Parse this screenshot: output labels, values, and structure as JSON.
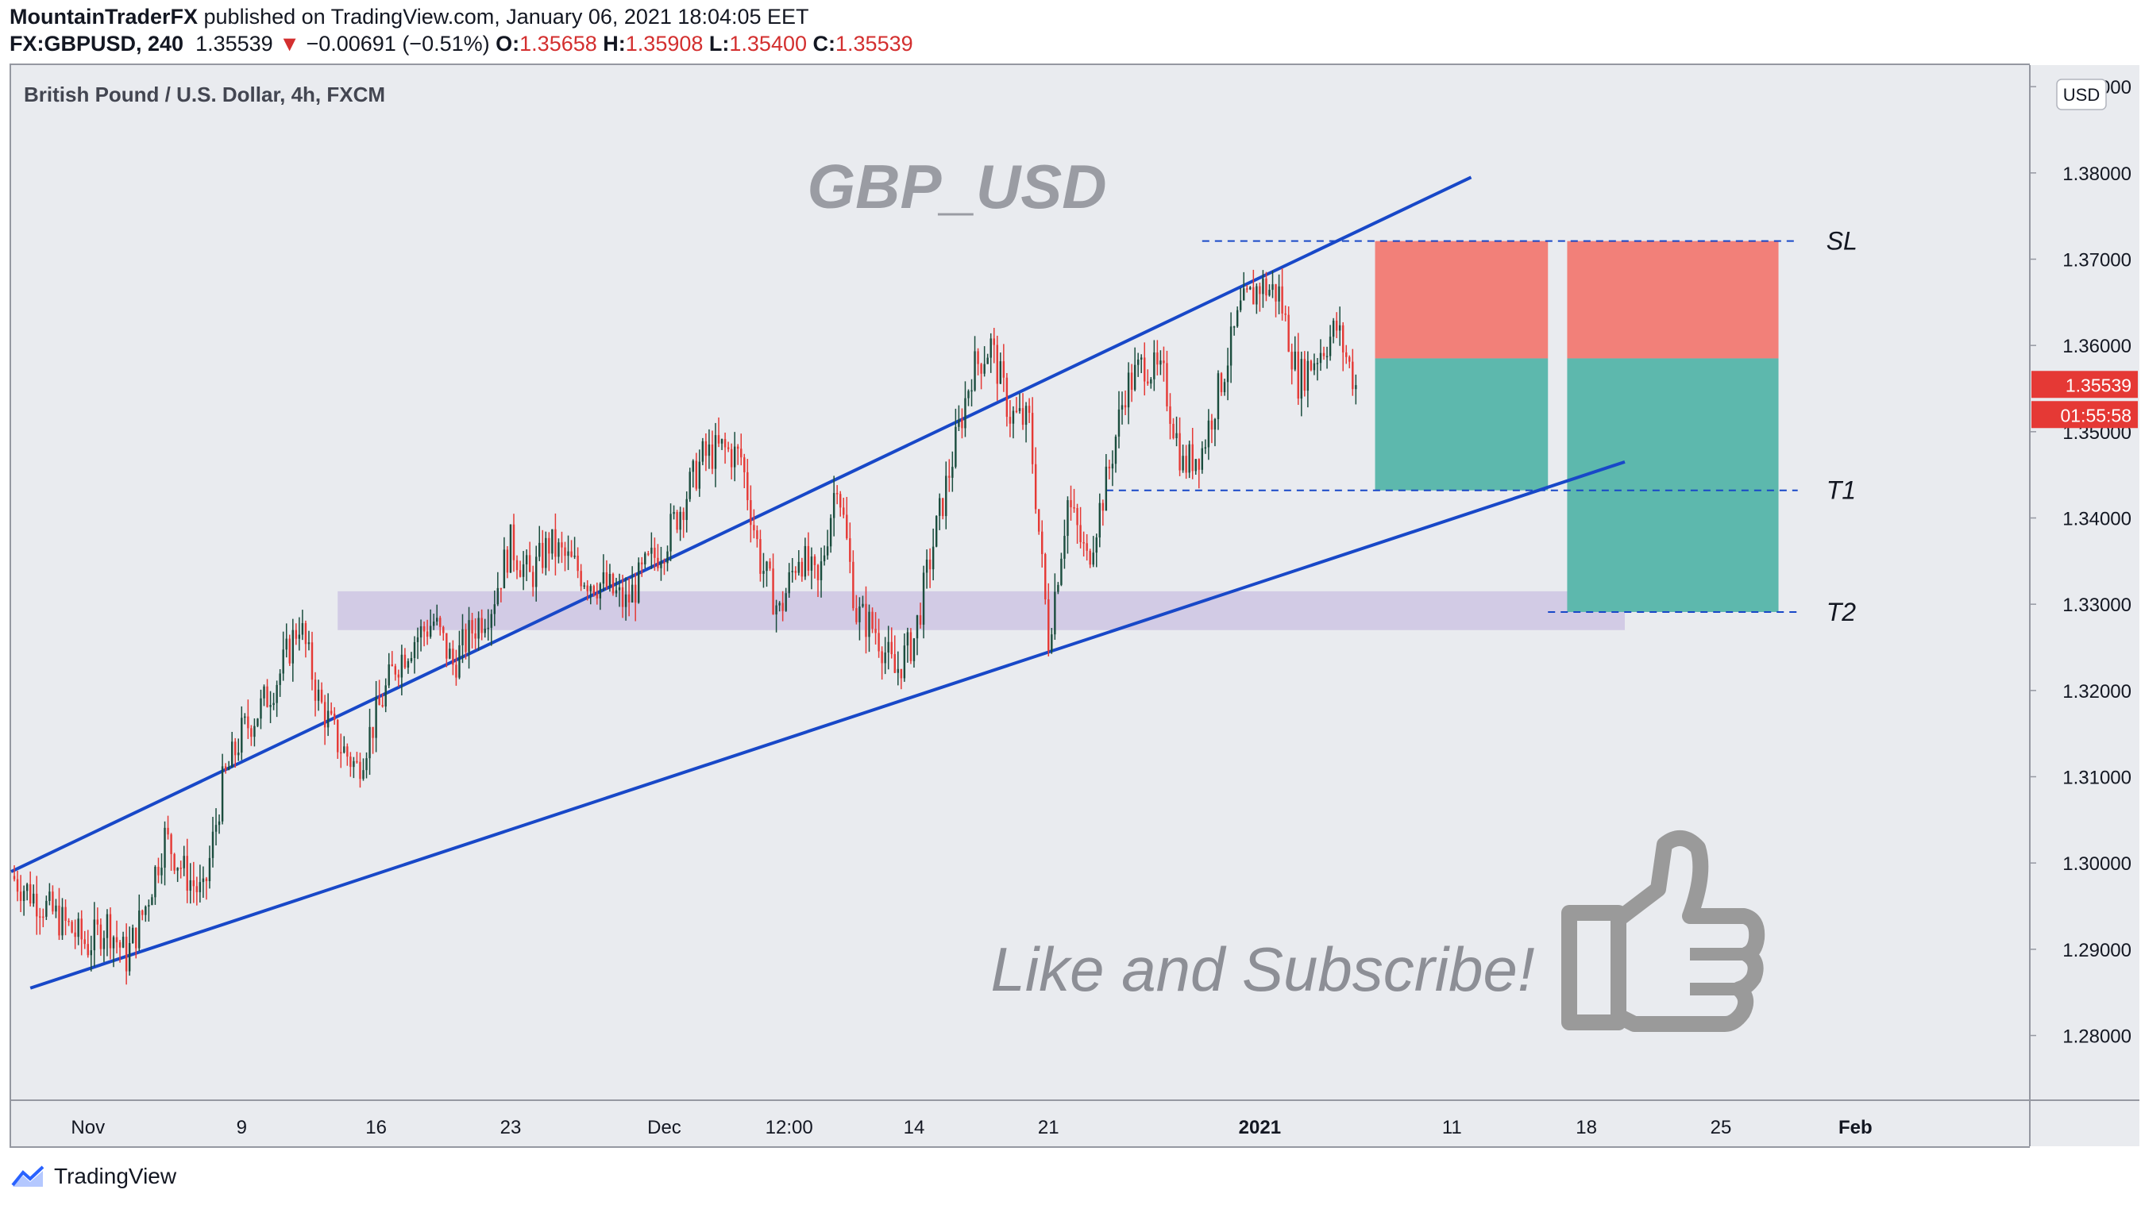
{
  "header": {
    "author": "MountainTraderFX",
    "published": " published on TradingView.com, January 06, 2021 18:04:05 EET",
    "symbol": "FX:GBPUSD, 240",
    "last": "1.35539",
    "change": "−0.00691 (−0.51%)",
    "o_label": "O:",
    "o": "1.35658",
    "h_label": "H:",
    "h": "1.35908",
    "l_label": "L:",
    "l": "1.35400",
    "c_label": "C:",
    "c": "1.35539"
  },
  "footer": {
    "brand": "TradingView"
  },
  "colors": {
    "background": "#e9ebef",
    "up": "#1b4d3e",
    "down": "#e53935",
    "channel": "#1848c8",
    "stop_zone": "#f28079",
    "target_zone": "#5db8ad",
    "support_zone": "#cfc8e3",
    "price_tag": "#e53935"
  },
  "chart_data": {
    "type": "candlestick",
    "title": "British Pound / U.S. Dollar, 4h, FXCM",
    "watermark": "GBP_USD",
    "caption": "Like and Subscribe!",
    "currency": "USD",
    "ylim": [
      1.2725,
      1.3925
    ],
    "y_ticks": [
      "1.28000",
      "1.29000",
      "1.30000",
      "1.31000",
      "1.32000",
      "1.33000",
      "1.34000",
      "1.35000",
      "1.36000",
      "1.37000",
      "1.38000",
      "1.39000"
    ],
    "x_ticks": [
      {
        "date": "2020-11-01",
        "label": "Nov",
        "bold": false
      },
      {
        "date": "2020-11-09",
        "label": "9",
        "bold": false
      },
      {
        "date": "2020-11-16",
        "label": "16",
        "bold": false
      },
      {
        "date": "2020-11-23",
        "label": "23",
        "bold": false
      },
      {
        "date": "2020-12-01",
        "label": "Dec",
        "bold": false
      },
      {
        "date": "2020-12-07 12:00",
        "label": "12:00",
        "bold": false
      },
      {
        "date": "2020-12-14",
        "label": "14",
        "bold": false
      },
      {
        "date": "2020-12-21",
        "label": "21",
        "bold": false
      },
      {
        "date": "2021-01-01",
        "label": "2021",
        "bold": true
      },
      {
        "date": "2021-01-11",
        "label": "11",
        "bold": false
      },
      {
        "date": "2021-01-18",
        "label": "18",
        "bold": false
      },
      {
        "date": "2021-01-25",
        "label": "25",
        "bold": false
      },
      {
        "date": "2021-02-01",
        "label": "Feb",
        "bold": true
      }
    ],
    "x_range": [
      "2020-10-28",
      "2021-02-10"
    ],
    "close_path": [
      [
        "2020-10-28",
        1.2985
      ],
      [
        "2020-10-30",
        1.2945
      ],
      [
        "2020-11-01",
        1.2905
      ],
      [
        "2020-11-02",
        1.293
      ],
      [
        "2020-11-03",
        1.289
      ],
      [
        "2020-11-04",
        1.295
      ],
      [
        "2020-11-05",
        1.303
      ],
      [
        "2020-11-06",
        1.299
      ],
      [
        "2020-11-07",
        1.296
      ],
      [
        "2020-11-08",
        1.309
      ],
      [
        "2020-11-09",
        1.315
      ],
      [
        "2020-11-10",
        1.318
      ],
      [
        "2020-11-11",
        1.322
      ],
      [
        "2020-11-12",
        1.328
      ],
      [
        "2020-11-13",
        1.319
      ],
      [
        "2020-11-14",
        1.314
      ],
      [
        "2020-11-15",
        1.311
      ],
      [
        "2020-11-16",
        1.317
      ],
      [
        "2020-11-17",
        1.323
      ],
      [
        "2020-11-18",
        1.326
      ],
      [
        "2020-11-19",
        1.328
      ],
      [
        "2020-11-20",
        1.323
      ],
      [
        "2020-11-21",
        1.327
      ],
      [
        "2020-11-22",
        1.33
      ],
      [
        "2020-11-23",
        1.337
      ],
      [
        "2020-11-24",
        1.333
      ],
      [
        "2020-11-25",
        1.337
      ],
      [
        "2020-11-26",
        1.335
      ],
      [
        "2020-11-27",
        1.333
      ],
      [
        "2020-11-28",
        1.332
      ],
      [
        "2020-11-29",
        1.33
      ],
      [
        "2020-11-30",
        1.334
      ],
      [
        "2020-12-01",
        1.337
      ],
      [
        "2020-12-02",
        1.342
      ],
      [
        "2020-12-03",
        1.347
      ],
      [
        "2020-12-04",
        1.348
      ],
      [
        "2020-12-05",
        1.347
      ],
      [
        "2020-12-06",
        1.335
      ],
      [
        "2020-12-07",
        1.329
      ],
      [
        "2020-12-08",
        1.336
      ],
      [
        "2020-12-09",
        1.332
      ],
      [
        "2020-12-10",
        1.345
      ],
      [
        "2020-12-11",
        1.329
      ],
      [
        "2020-12-12",
        1.327
      ],
      [
        "2020-12-13",
        1.322
      ],
      [
        "2020-12-14",
        1.326
      ],
      [
        "2020-12-15",
        1.337
      ],
      [
        "2020-12-16",
        1.347
      ],
      [
        "2020-12-17",
        1.357
      ],
      [
        "2020-12-18",
        1.36
      ],
      [
        "2020-12-19",
        1.352
      ],
      [
        "2020-12-20",
        1.351
      ],
      [
        "2020-12-21",
        1.326
      ],
      [
        "2020-12-22",
        1.342
      ],
      [
        "2020-12-23",
        1.335
      ],
      [
        "2020-12-24",
        1.344
      ],
      [
        "2020-12-25",
        1.355
      ],
      [
        "2020-12-26",
        1.358
      ],
      [
        "2020-12-27",
        1.356
      ],
      [
        "2020-12-28",
        1.346
      ],
      [
        "2020-12-29",
        1.348
      ],
      [
        "2020-12-30",
        1.356
      ],
      [
        "2020-12-31",
        1.364
      ],
      [
        "2021-01-01",
        1.367
      ],
      [
        "2021-01-02",
        1.366
      ],
      [
        "2021-01-03",
        1.356
      ],
      [
        "2021-01-04",
        1.359
      ],
      [
        "2021-01-05",
        1.362
      ],
      [
        "2021-01-06",
        1.3554
      ]
    ],
    "channel_lines": [
      {
        "name": "upper",
        "from": [
          "2020-10-28",
          1.299
        ],
        "to": [
          "2021-01-12",
          1.3795
        ]
      },
      {
        "name": "lower",
        "from": [
          "2020-10-29",
          1.2855
        ],
        "to": [
          "2021-01-20",
          1.3465
        ]
      }
    ],
    "support_zone": {
      "from": "2020-11-14",
      "to": "2021-01-20",
      "low": 1.327,
      "high": 1.3315
    },
    "levels": [
      {
        "label": "SL",
        "price": 1.3721,
        "from": "2020-12-29",
        "to": "2021-01-29"
      },
      {
        "label": "T1",
        "price": 1.3432,
        "from": "2020-12-24",
        "to": "2021-01-29"
      },
      {
        "label": "T2",
        "price": 1.3291,
        "from": "2021-01-16",
        "to": "2021-01-29"
      }
    ],
    "positions": [
      {
        "name": "position 1",
        "from": "2021-01-07",
        "to": "2021-01-16",
        "entry": 1.3585,
        "stop": 1.3721,
        "target": 1.3432
      },
      {
        "name": "position 2",
        "from": "2021-01-17",
        "to": "2021-01-28",
        "entry": 1.3585,
        "stop": 1.3721,
        "target": 1.3291
      }
    ],
    "price_tags": [
      {
        "text": "1.35539",
        "price": 1.35539
      },
      {
        "text": "01:55:58",
        "price": 1.35539,
        "below": true
      }
    ]
  }
}
